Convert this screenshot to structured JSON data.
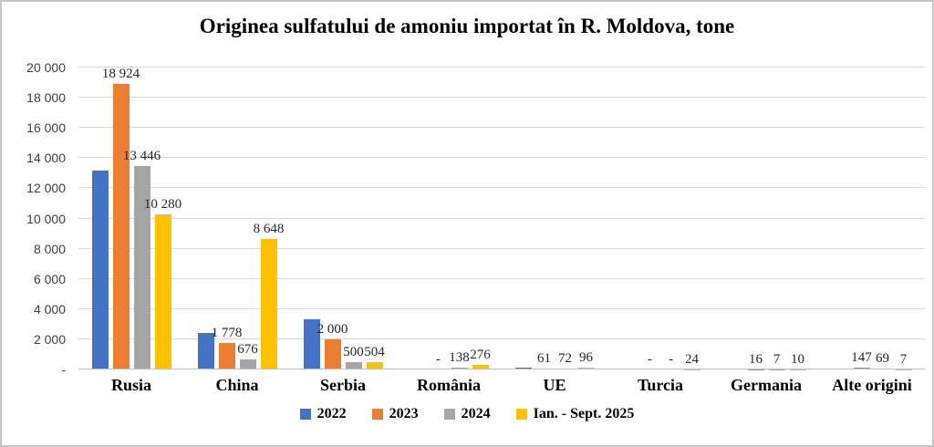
{
  "title": "Originea sulfatului de amoniu importat în R. Moldova, tone",
  "chart_data": {
    "type": "bar",
    "title": "Originea sulfatului de amoniu importat în R. Moldova, tone",
    "categories": [
      "Rusia",
      "China",
      "Serbia",
      "România",
      "UE",
      "Turcia",
      "Germania",
      "Alte origini"
    ],
    "series": [
      {
        "name": "2022",
        "color": "#4472C4",
        "values": [
          13200,
          2400,
          3300,
          0,
          150,
          0,
          0,
          0
        ],
        "labels": [
          "",
          "",
          "",
          "",
          "",
          "",
          "",
          ""
        ]
      },
      {
        "name": "2023",
        "color": "#ED7D31",
        "values": [
          18924,
          1778,
          2000,
          0,
          61,
          0,
          16,
          147
        ],
        "labels": [
          "18 924",
          "1 778",
          "2 000",
          "-",
          "61",
          "-",
          "16",
          "147"
        ]
      },
      {
        "name": "2024",
        "color": "#A5A5A5",
        "values": [
          13446,
          676,
          500,
          138,
          72,
          0,
          7,
          69
        ],
        "labels": [
          "13 446",
          "676",
          "500",
          "138",
          "72",
          "-",
          "7",
          "69"
        ]
      },
      {
        "name": "Ian. - Sept. 2025",
        "color": "#FFC000",
        "values": [
          10280,
          8648,
          504,
          276,
          96,
          24,
          10,
          7
        ],
        "labels": [
          "10 280",
          "8 648",
          "504",
          "276",
          "96",
          "24",
          "10",
          "7"
        ]
      }
    ],
    "xlabel": "",
    "ylabel": "",
    "ylim": [
      0,
      20000
    ],
    "ytick_labels": [
      "-",
      "2 000",
      "4 000",
      "6 000",
      "8 000",
      "10 000",
      "12 000",
      "14 000",
      "16 000",
      "18 000",
      "20 000"
    ],
    "grid": true,
    "legend_position": "bottom"
  }
}
